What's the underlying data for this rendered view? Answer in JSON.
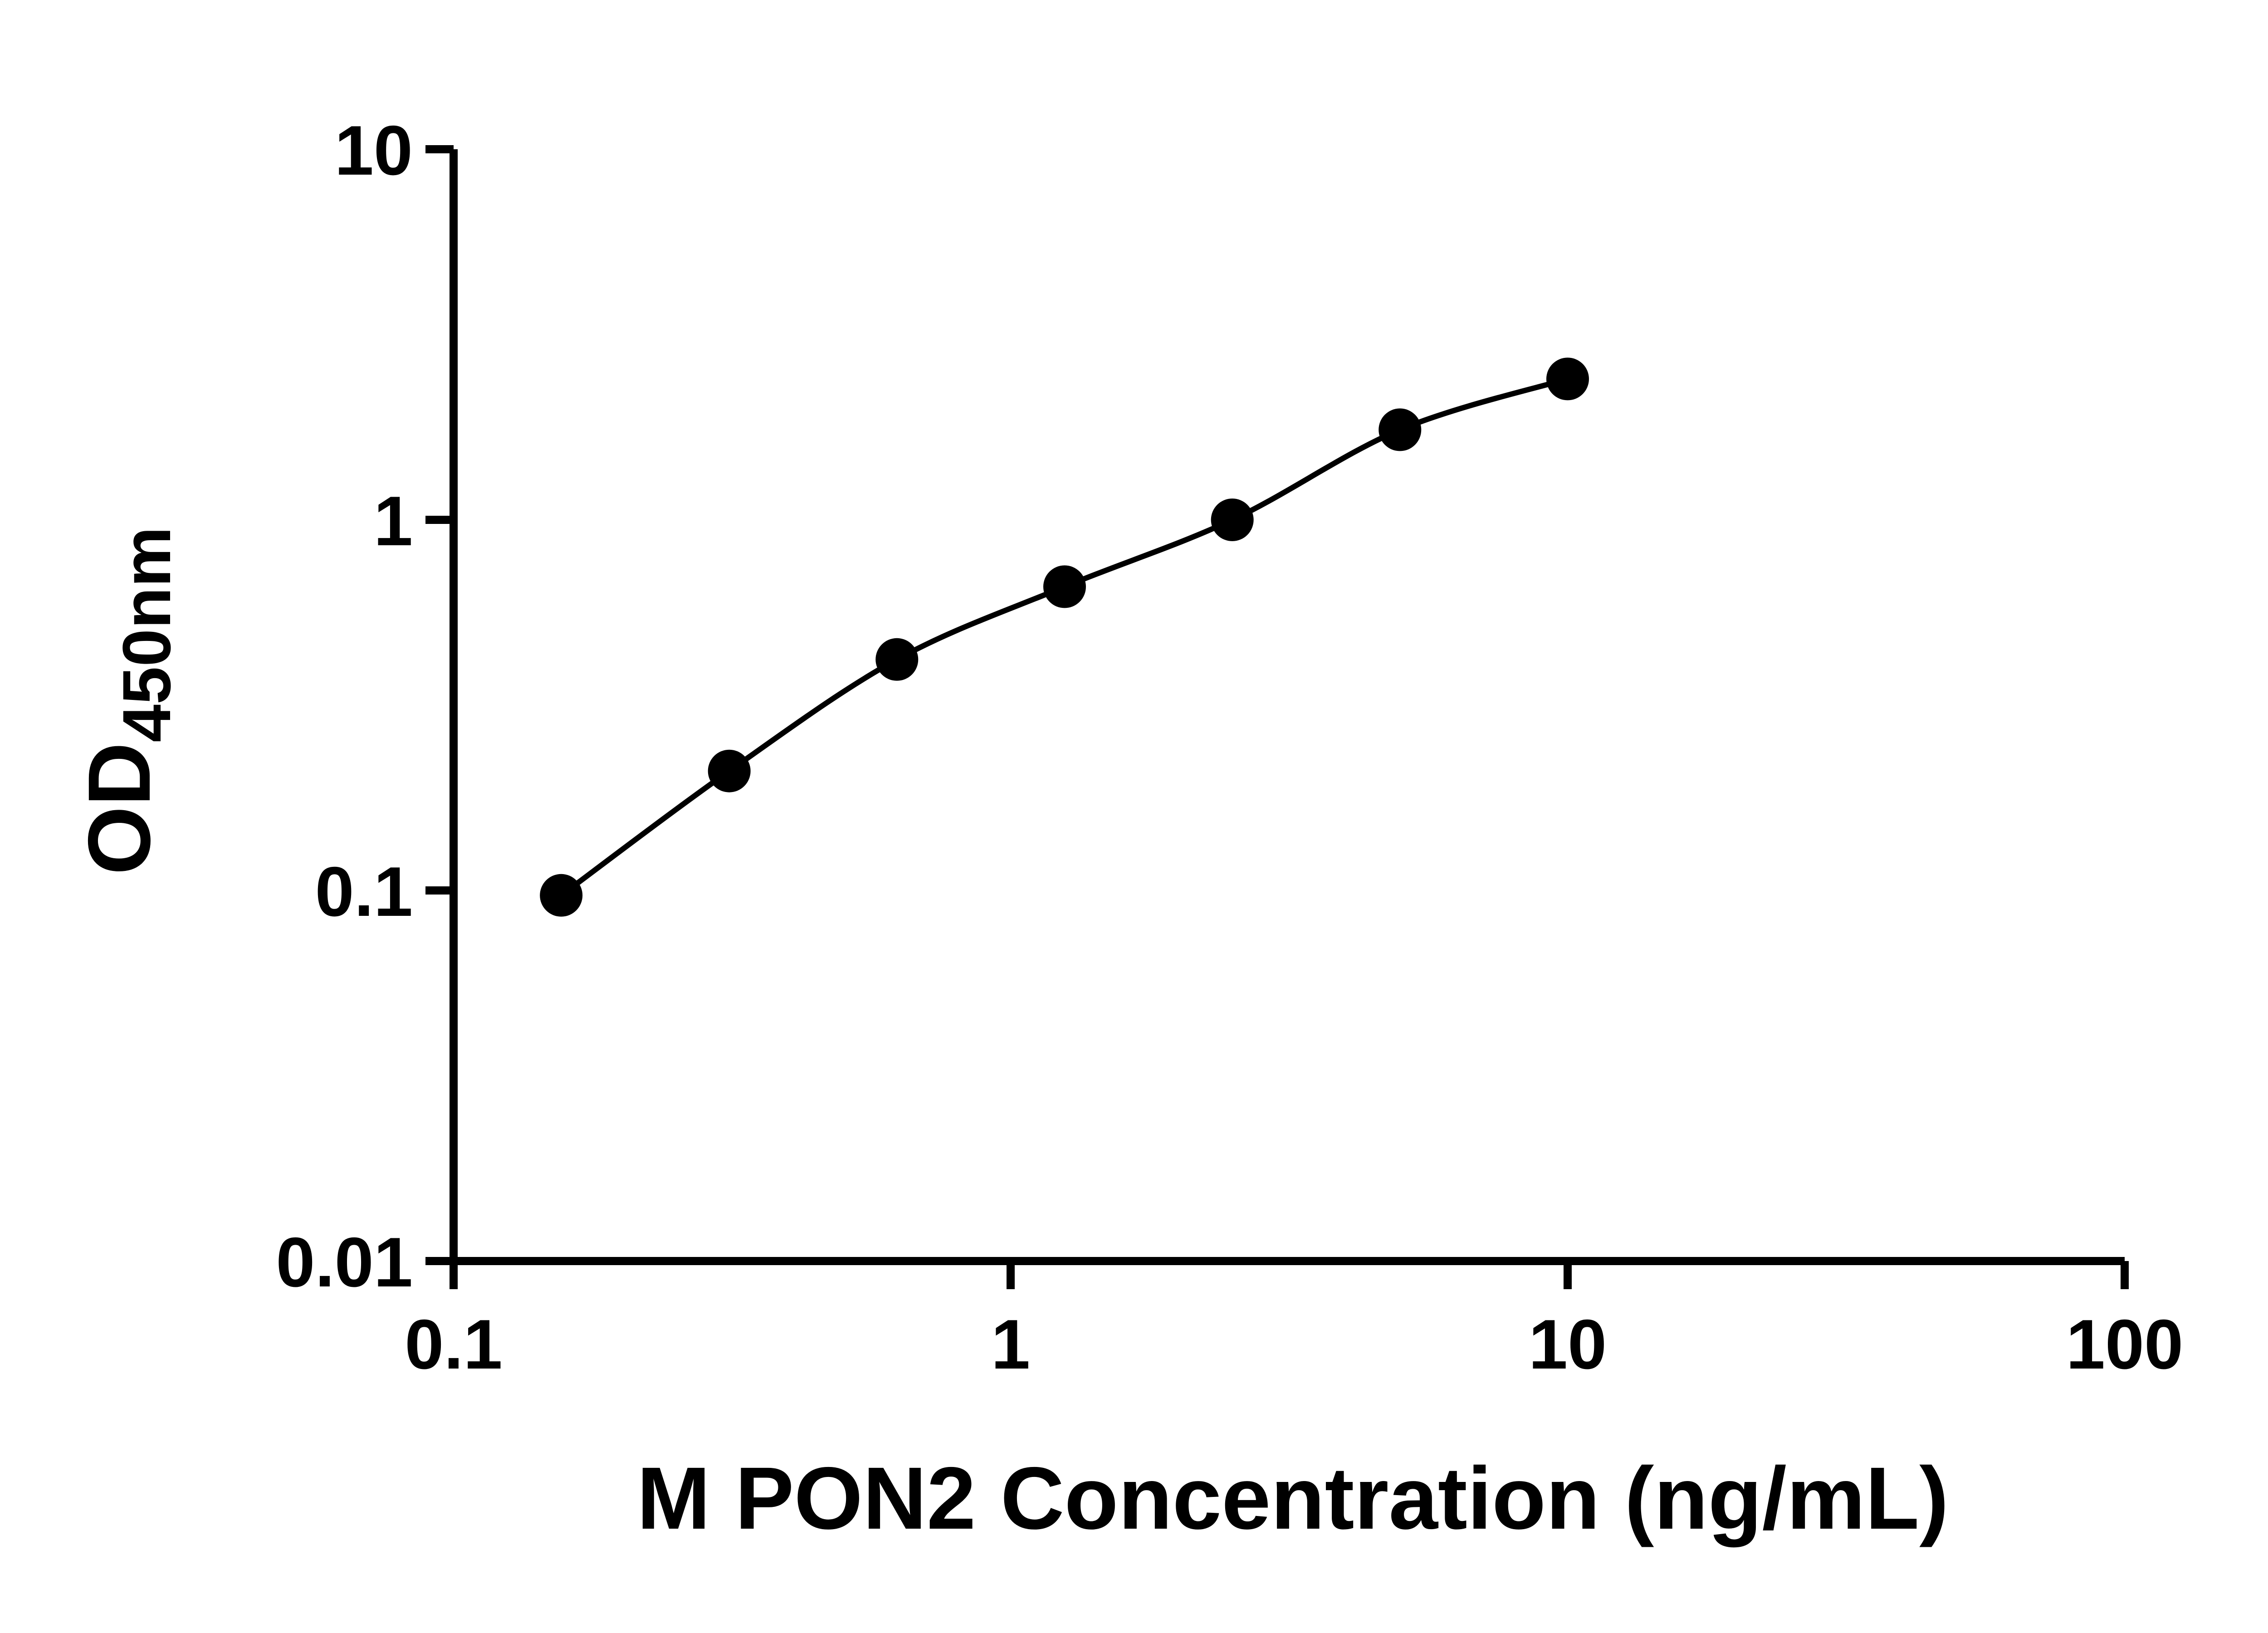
{
  "chart_data": {
    "type": "scatter",
    "title": "",
    "xlabel": "M PON2 Concentration (ng/mL)",
    "ylabel": "OD450nm",
    "ylabel_main": "OD",
    "ylabel_sub": "450nm",
    "x": [
      0.156,
      0.3125,
      0.625,
      1.25,
      2.5,
      5,
      10
    ],
    "y": [
      0.097,
      0.21,
      0.42,
      0.66,
      1.0,
      1.75,
      2.4
    ],
    "xscale": "log",
    "yscale": "log",
    "xlim": [
      0.1,
      100
    ],
    "ylim": [
      0.01,
      10
    ],
    "x_ticks": [
      0.1,
      1,
      10,
      100
    ],
    "x_tick_labels": [
      "0.1",
      "1",
      "10",
      "100"
    ],
    "y_ticks": [
      0.01,
      0.1,
      1,
      10
    ],
    "y_tick_labels": [
      "0.01",
      "0.1",
      "1",
      "10"
    ],
    "grid": false,
    "legend": "none",
    "marker": "filled-circle",
    "marker_color": "#000000",
    "line_color": "#000000",
    "curve": "smooth",
    "axis_color": "#000000",
    "background_color": "#ffffff"
  }
}
